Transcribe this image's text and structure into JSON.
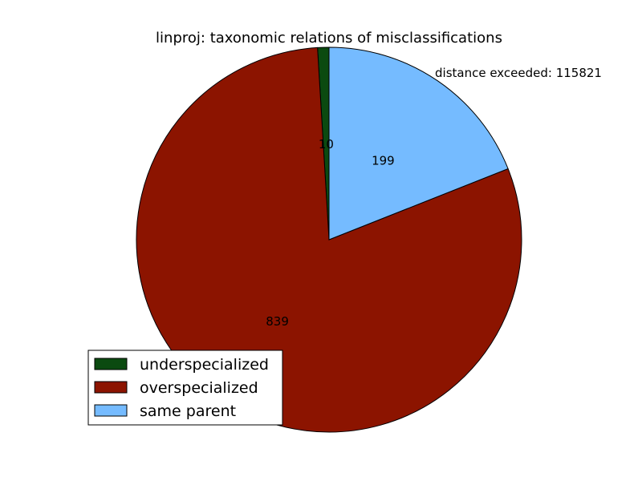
{
  "chart_data": {
    "type": "pie",
    "title": "linproj: taxonomic relations of misclassifications",
    "annotation": "distance exceeded: 115821",
    "slices": [
      {
        "label": "underspecialized",
        "value": 10,
        "color": "#0b4a10"
      },
      {
        "label": "overspecialized",
        "value": 839,
        "color": "#8c1400"
      },
      {
        "label": "same parent",
        "value": 199,
        "color": "#75bbff"
      }
    ],
    "legend": {
      "placement": "lower-left"
    }
  }
}
